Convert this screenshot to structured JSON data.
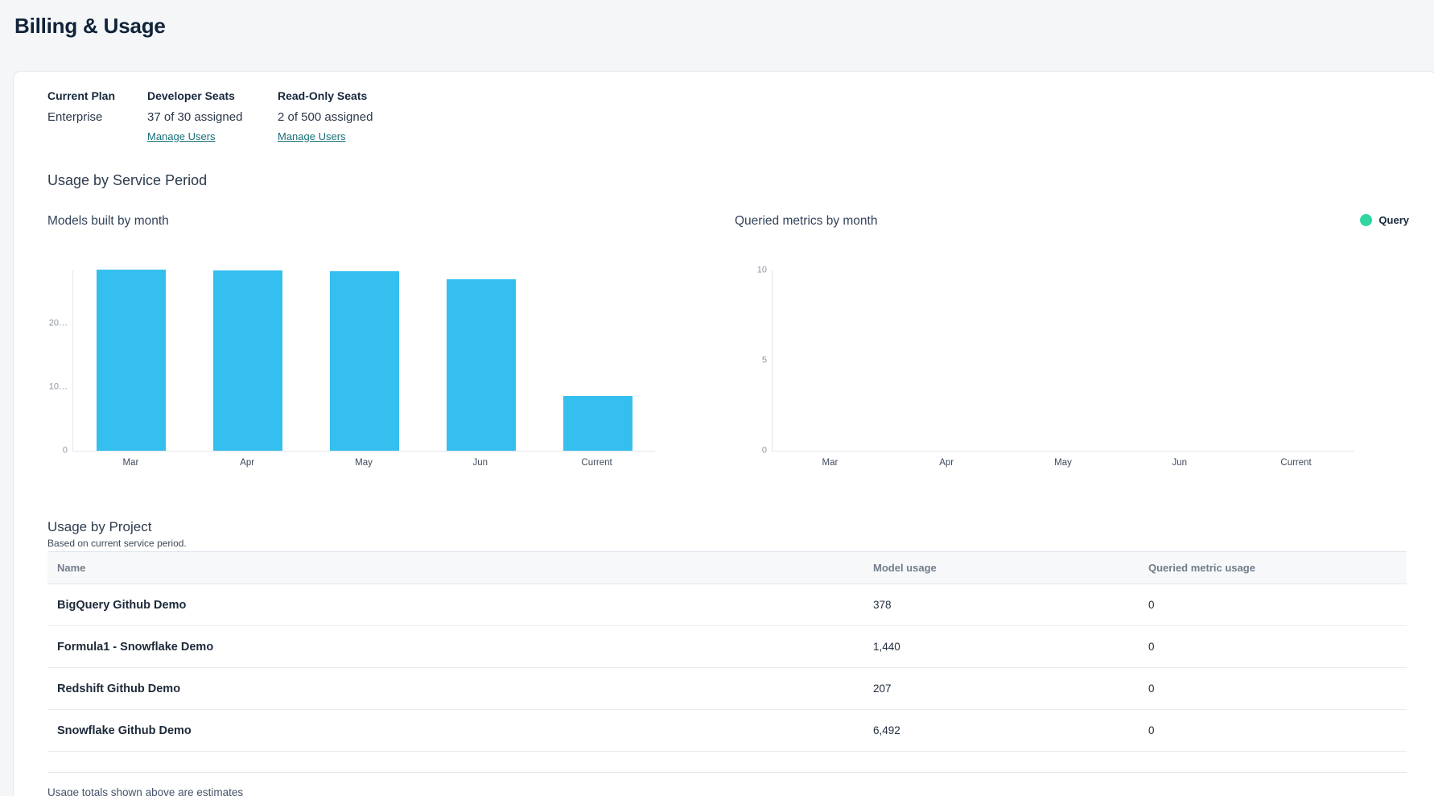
{
  "page": {
    "title": "Billing & Usage"
  },
  "colors": {
    "link_teal": "#166f77",
    "bar_blue": "#35bfef",
    "legend_green": "#2fd6a2"
  },
  "plan": {
    "current_plan_label": "Current Plan",
    "current_plan_value": "Enterprise",
    "developer_seats_label": "Developer Seats",
    "developer_seats_value": "37 of 30 assigned",
    "developer_manage_link": "Manage Users",
    "readonly_seats_label": "Read-Only Seats",
    "readonly_seats_value": "2 of 500 assigned",
    "readonly_manage_link": "Manage Users"
  },
  "usage_section": {
    "title": "Usage by Service Period"
  },
  "charts_legend": {
    "label": "Query",
    "color": "#2fd6a2"
  },
  "chart_data": [
    {
      "type": "bar",
      "title": "Models built by month",
      "categories": [
        "Mar",
        "Apr",
        "May",
        "Jun",
        "Current"
      ],
      "values": [
        28300,
        28150,
        28000,
        26800,
        8600
      ],
      "bar_color": "#35bfef",
      "xlabel": "",
      "ylabel": "",
      "ylim": [
        0,
        28300
      ],
      "yticks": [
        {
          "value": 0,
          "label": "0"
        },
        {
          "value": 10000,
          "label": "10…"
        },
        {
          "value": 20000,
          "label": "20…"
        }
      ],
      "grid": false,
      "legend_position": "none"
    },
    {
      "type": "bar",
      "title": "Queried metrics by month",
      "categories": [
        "Mar",
        "Apr",
        "May",
        "Jun",
        "Current"
      ],
      "series": [
        {
          "name": "Query",
          "values": [
            0,
            0,
            0,
            0,
            0
          ],
          "color": "#2fd6a2"
        }
      ],
      "xlabel": "",
      "ylabel": "",
      "ylim": [
        0,
        10
      ],
      "yticks": [
        {
          "value": 0,
          "label": "0"
        },
        {
          "value": 5,
          "label": "5"
        },
        {
          "value": 10,
          "label": "10"
        }
      ],
      "grid": false,
      "legend_position": "top-right"
    }
  ],
  "project_section": {
    "title": "Usage by Project",
    "subtitle": "Based on current service period.",
    "table": {
      "columns": [
        "Name",
        "Model usage",
        "Queried metric usage"
      ],
      "rows": [
        {
          "name": "BigQuery Github Demo",
          "model_usage": "378",
          "queried_metric_usage": "0"
        },
        {
          "name": "Formula1 - Snowflake Demo",
          "model_usage": "1,440",
          "queried_metric_usage": "0"
        },
        {
          "name": "Redshift Github Demo",
          "model_usage": "207",
          "queried_metric_usage": "0"
        },
        {
          "name": "Snowflake Github Demo",
          "model_usage": "6,492",
          "queried_metric_usage": "0"
        }
      ]
    },
    "footnote": "Usage totals shown above are estimates"
  }
}
